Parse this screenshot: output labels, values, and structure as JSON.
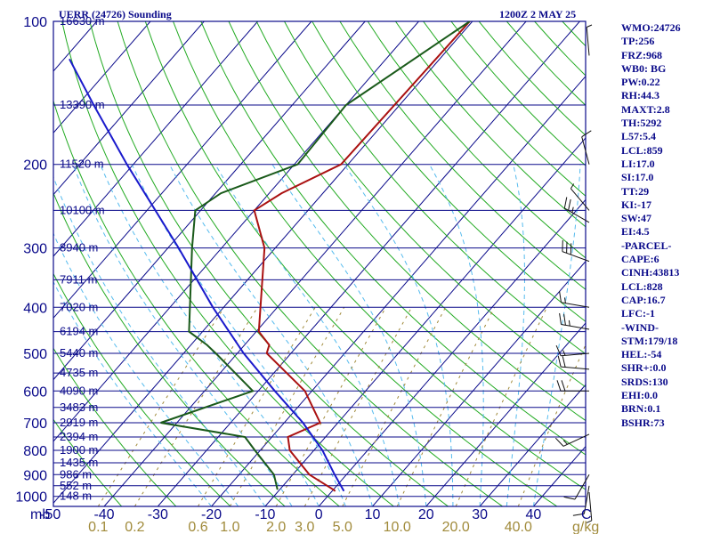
{
  "header": {
    "station": "UERR (24726) Sounding",
    "time": "1200Z  2 MAY 25"
  },
  "index_panel": [
    "WMO:24726",
    "TP:256",
    "FRZ:968",
    "WB0: BG",
    "PW:0.22",
    "RH:44.3",
    "MAXT:2.8",
    "TH:5292",
    "L57:5.4",
    "LCL:859",
    "LI:17.0",
    "SI:17.0",
    "TT:29",
    "KI:-17",
    "SW:47",
    "EI:4.5",
    "-PARCEL-",
    "CAPE:6",
    "CINH:43813",
    "LCL:828",
    "CAP:16.7",
    "LFC:-1",
    "-WIND-",
    "STM:179/18",
    "HEL:-54",
    "SHR+:0.0",
    "SRDS:130",
    "EHI:0.0",
    "BRN:0.1",
    "BSHR:73"
  ],
  "colors": {
    "isobar": "#0a0a8a",
    "isotherm": "#0a0a8a",
    "dry_adiabat": "#22aa22",
    "moist_adiabat": "#55bbee",
    "mixing_ratio": "#a08a3a",
    "temperature": "#aa1111",
    "dewpoint": "#1a5a1a",
    "parcel": "#1a1acc",
    "wind": "#111111"
  },
  "chart_data": {
    "type": "skew-t",
    "y_axis_unit": "mb",
    "x_axis_unit": "C",
    "mixing_ratio_unit": "g/kg",
    "pressure_ticks": [
      100,
      200,
      300,
      400,
      500,
      600,
      700,
      800,
      900,
      1000
    ],
    "temperature_ticks": [
      -50,
      -40,
      -30,
      -20,
      -10,
      0,
      10,
      20,
      30,
      40
    ],
    "mixing_ratio_ticks": [
      "0.1",
      "0.2",
      "0.6",
      "1.0",
      "2.0",
      "3.0",
      "5.0",
      "10.0",
      "20.0",
      "40.0"
    ],
    "height_labels": [
      {
        "p": 100,
        "h": "16630 m"
      },
      {
        "p": 150,
        "h": "13390 m"
      },
      {
        "p": 200,
        "h": "11520 m"
      },
      {
        "p": 250,
        "h": "10100 m"
      },
      {
        "p": 300,
        "h": "8940 m"
      },
      {
        "p": 350,
        "h": "7911 m"
      },
      {
        "p": 400,
        "h": "7020 m"
      },
      {
        "p": 450,
        "h": "6194 m"
      },
      {
        "p": 500,
        "h": "5440 m"
      },
      {
        "p": 550,
        "h": "4735 m"
      },
      {
        "p": 600,
        "h": "4090 m"
      },
      {
        "p": 650,
        "h": "3483 m"
      },
      {
        "p": 700,
        "h": "2919 m"
      },
      {
        "p": 750,
        "h": "2394 m"
      },
      {
        "p": 800,
        "h": "1900 m"
      },
      {
        "p": 850,
        "h": "1435 m"
      },
      {
        "p": 900,
        "h": "986 m"
      },
      {
        "p": 950,
        "h": "552 m"
      },
      {
        "p": 1000,
        "h": "148 m"
      }
    ],
    "series": [
      {
        "name": "Temperature",
        "points": [
          [
            100,
            -50.5
          ],
          [
            200,
            -51.3
          ],
          [
            230,
            -57.7
          ],
          [
            250,
            -60
          ],
          [
            300,
            -52
          ],
          [
            450,
            -39.5
          ],
          [
            480,
            -35.4
          ],
          [
            500,
            -34.5
          ],
          [
            600,
            -21.3
          ],
          [
            700,
            -13.3
          ],
          [
            750,
            -17
          ],
          [
            800,
            -14.5
          ],
          [
            900,
            -6.9
          ],
          [
            968,
            0
          ],
          [
            975,
            0.6
          ]
        ]
      },
      {
        "name": "Dewpoint",
        "points": [
          [
            100,
            -50.5
          ],
          [
            150,
            -60
          ],
          [
            200,
            -59.4
          ],
          [
            230,
            -69
          ],
          [
            250,
            -71
          ],
          [
            300,
            -65.5
          ],
          [
            450,
            -52.5
          ],
          [
            480,
            -47
          ],
          [
            500,
            -44
          ],
          [
            600,
            -31
          ],
          [
            700,
            -43
          ],
          [
            750,
            -25
          ],
          [
            800,
            -21
          ],
          [
            900,
            -13.5
          ],
          [
            968,
            -10.4
          ]
        ]
      },
      {
        "name": "Parcel",
        "points": [
          [
            120,
            -119
          ],
          [
            150,
            -107
          ],
          [
            200,
            -91.2
          ],
          [
            300,
            -68
          ],
          [
            400,
            -52
          ],
          [
            500,
            -38.8
          ],
          [
            600,
            -26.9
          ],
          [
            700,
            -16.5
          ],
          [
            800,
            -8.4
          ],
          [
            900,
            -2.2
          ],
          [
            975,
            2.2
          ]
        ]
      }
    ],
    "winds": [
      {
        "p": 118,
        "dir": 355,
        "kt": 5
      },
      {
        "p": 200,
        "dir": 345,
        "kt": 10
      },
      {
        "p": 250,
        "dir": 320,
        "kt": 5
      },
      {
        "p": 265,
        "dir": 300,
        "kt": 25
      },
      {
        "p": 320,
        "dir": 290,
        "kt": 30
      },
      {
        "p": 400,
        "dir": 280,
        "kt": 15
      },
      {
        "p": 445,
        "dir": 280,
        "kt": 25
      },
      {
        "p": 500,
        "dir": 265,
        "kt": 15
      },
      {
        "p": 540,
        "dir": 275,
        "kt": 20
      },
      {
        "p": 600,
        "dir": 270,
        "kt": 20
      },
      {
        "p": 740,
        "dir": 245,
        "kt": 15
      },
      {
        "p": 900,
        "dir": 210,
        "kt": 10
      },
      {
        "p": 950,
        "dir": 190,
        "kt": 10
      },
      {
        "p": 980,
        "dir": 175,
        "kt": 5
      }
    ]
  }
}
